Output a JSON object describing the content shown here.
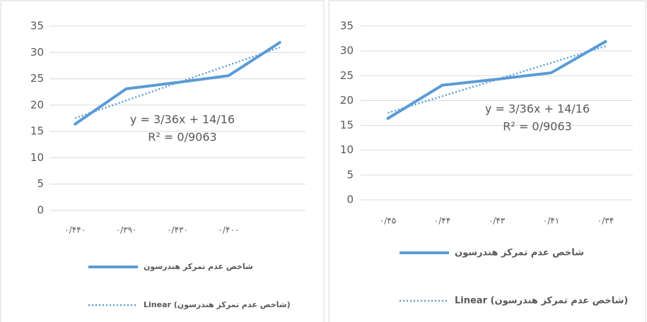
{
  "chart_data": [
    {
      "type": "line",
      "categories": [
        "۰/۴۴۰",
        "۰/۳۹۰",
        "۰/۴۳۰",
        "۰/۴۰۰",
        null
      ],
      "series": [
        {
          "name": "شاخص عدم تمرکز هندرسون",
          "color": "#5b9bd5",
          "style": "solid",
          "values": [
            16.4,
            23.1,
            24.3,
            25.6,
            31.9
          ]
        },
        {
          "name": "Linear (شاخص عدم تمرکز هندرسون)",
          "color": "#5b9bd5",
          "style": "dotted",
          "values": [
            17.52,
            20.88,
            24.24,
            27.6,
            30.96
          ]
        }
      ],
      "annotations": [
        "y = 3/36x + 14/16",
        "R² = 0/9063"
      ],
      "ylim": [
        0,
        35
      ],
      "yticks": [
        0,
        5,
        10,
        15,
        20,
        25,
        30,
        35
      ],
      "grid": true
    },
    {
      "type": "line",
      "categories": [
        "۰/۴۵",
        "۰/۴۴",
        "۰/۴۳",
        "۰/۴۱",
        "۰/۳۴"
      ],
      "series": [
        {
          "name": "شاخص عدم تمرکز هندرسون",
          "color": "#5b9bd5",
          "style": "solid",
          "values": [
            16.4,
            23.1,
            24.3,
            25.6,
            31.9
          ]
        },
        {
          "name": "Linear (شاخص عدم تمرکز هندرسون)",
          "color": "#5b9bd5",
          "style": "dotted",
          "values": [
            17.52,
            20.88,
            24.24,
            27.6,
            30.96
          ]
        }
      ],
      "annotations": [
        "y = 3/36x + 14/16",
        "R² = 0/9063"
      ],
      "ylim": [
        0,
        35
      ],
      "yticks": [
        0,
        5,
        10,
        15,
        20,
        25,
        30,
        35
      ],
      "grid": true
    }
  ]
}
